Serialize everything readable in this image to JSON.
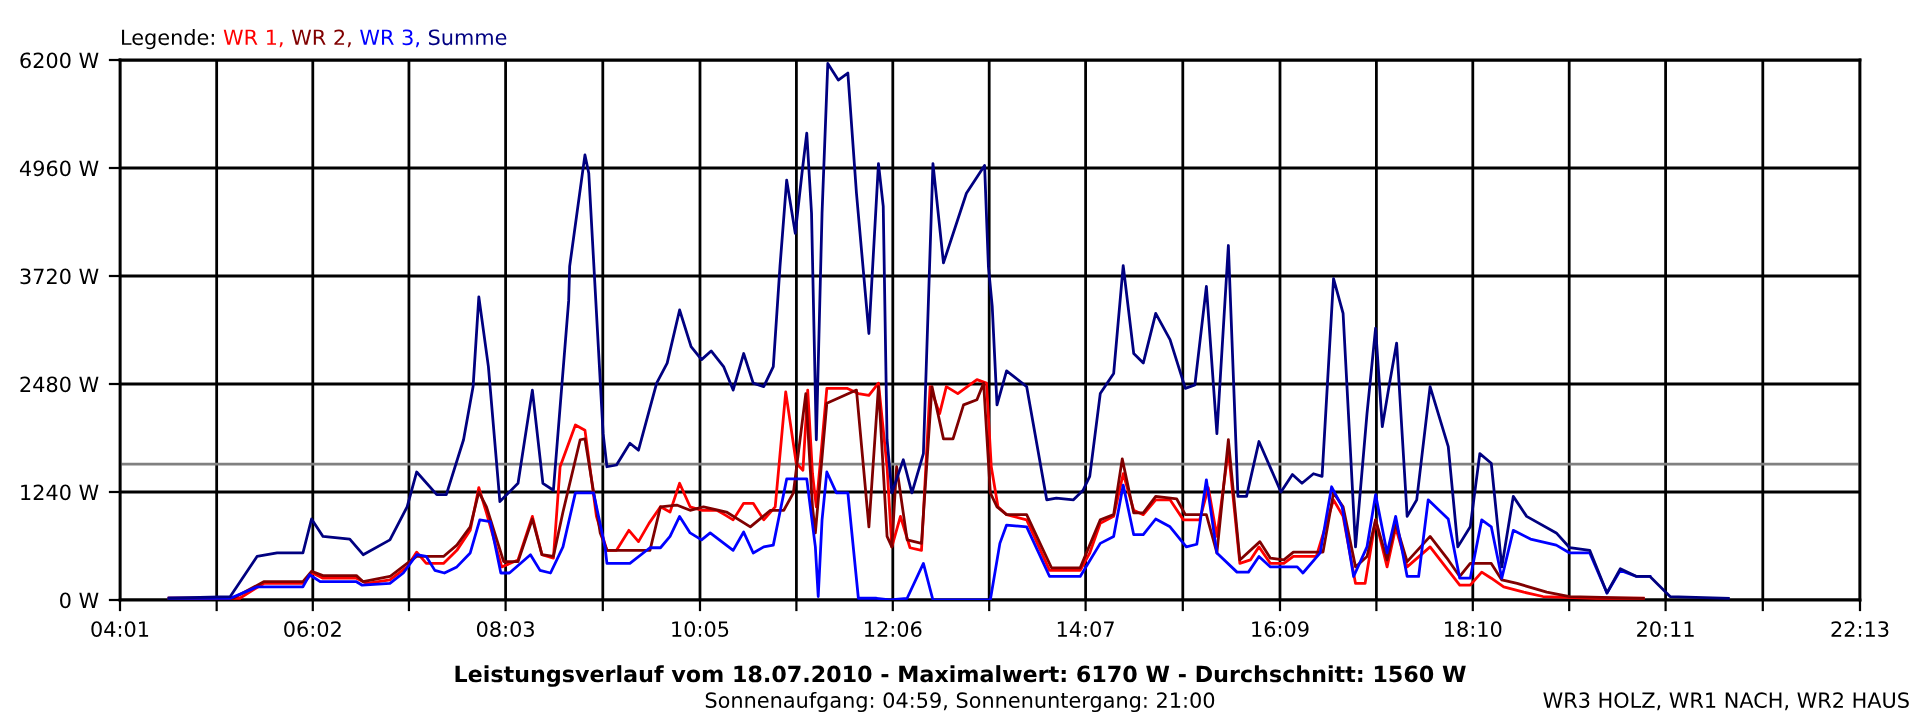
{
  "chart_data": {
    "type": "line",
    "title": "Leistungsverlauf vom 18.07.2010 - Maximalwert: 6170 W - Durchschnitt: 1560 W",
    "subtitle": "Sonnenaufgang: 04:59, Sonnenuntergang: 21:00",
    "legend_title": "Legende:",
    "annotations": [
      "WR3 HOLZ, WR1 NACH, WR2 HAUS"
    ],
    "xlim": [
      4.0167,
      22.2167
    ],
    "xticks": [
      {
        "value": 4.0167,
        "label": "04:01"
      },
      {
        "value": 5.0278,
        "label": null
      },
      {
        "value": 6.0333,
        "label": "06:02"
      },
      {
        "value": 7.0389,
        "label": null
      },
      {
        "value": 8.05,
        "label": "08:03"
      },
      {
        "value": 9.0667,
        "label": null
      },
      {
        "value": 10.0833,
        "label": "10:05"
      },
      {
        "value": 11.0917,
        "label": null
      },
      {
        "value": 12.1,
        "label": "12:06"
      },
      {
        "value": 13.1083,
        "label": null
      },
      {
        "value": 14.1167,
        "label": "14:07"
      },
      {
        "value": 15.1333,
        "label": null
      },
      {
        "value": 16.15,
        "label": "16:09"
      },
      {
        "value": 17.1583,
        "label": null
      },
      {
        "value": 18.1667,
        "label": "18:10"
      },
      {
        "value": 19.175,
        "label": null
      },
      {
        "value": 20.1833,
        "label": "20:11"
      },
      {
        "value": 21.2,
        "label": null
      },
      {
        "value": 22.2167,
        "label": "22:13"
      }
    ],
    "ylim": [
      0,
      6200
    ],
    "yticks": [
      {
        "value": 0,
        "label": "0 W"
      },
      {
        "value": 1240,
        "label": "1240 W"
      },
      {
        "value": 2480,
        "label": "2480 W"
      },
      {
        "value": 3720,
        "label": "3720 W"
      },
      {
        "value": 4960,
        "label": "4960 W"
      },
      {
        "value": 6200,
        "label": "6200 W"
      }
    ],
    "grid": true,
    "legend": "top left",
    "marker": "none",
    "line_style": "solid",
    "ref_lines": [
      {
        "axis": "y",
        "value": 1560,
        "color": "#808080"
      }
    ],
    "series": [
      {
        "name": "WR 1,",
        "color": "#ff0000",
        "x": [
          4.53,
          5.27,
          5.52,
          5.93,
          6.03,
          6.14,
          6.49,
          6.6,
          6.84,
          7.02,
          7.12,
          7.22,
          7.4,
          7.54,
          7.68,
          7.77,
          7.85,
          8.01,
          8.18,
          8.33,
          8.43,
          8.55,
          8.62,
          8.78,
          8.88,
          9.0,
          9.11,
          9.21,
          9.34,
          9.44,
          9.55,
          9.67,
          9.77,
          9.87,
          9.98,
          10.1,
          10.26,
          10.34,
          10.43,
          10.54,
          10.64,
          10.75,
          10.87,
          10.98,
          11.09,
          11.16,
          11.21,
          11.26,
          11.3,
          11.41,
          11.62,
          11.74,
          11.85,
          11.95,
          12.04,
          12.09,
          12.18,
          12.28,
          12.4,
          12.49,
          12.59,
          12.66,
          12.78,
          12.98,
          13.08,
          13.13,
          13.2,
          13.29,
          13.5,
          13.74,
          14.06,
          14.16,
          14.27,
          14.41,
          14.51,
          14.62,
          14.72,
          14.85,
          15.0,
          15.14,
          15.31,
          15.4,
          15.49,
          15.61,
          15.73,
          15.84,
          15.93,
          16.05,
          16.19,
          16.29,
          16.53,
          16.71,
          16.81,
          16.94,
          17.04,
          17.15,
          17.27,
          17.36,
          17.48,
          17.72,
          17.91,
          18.03,
          18.14,
          18.26,
          18.36,
          18.49,
          18.7,
          18.9,
          19.46,
          19.95
        ],
        "values": [
          20,
          20,
          190,
          190,
          310,
          250,
          250,
          190,
          230,
          380,
          550,
          420,
          420,
          570,
          800,
          1290,
          1000,
          380,
          460,
          960,
          520,
          480,
          1530,
          2010,
          1950,
          960,
          570,
          570,
          800,
          670,
          880,
          1070,
          1010,
          1340,
          1070,
          1030,
          1030,
          980,
          920,
          1110,
          1110,
          920,
          1070,
          2390,
          1570,
          1490,
          2410,
          1450,
          1070,
          2430,
          2430,
          2370,
          2350,
          2490,
          1530,
          610,
          960,
          600,
          570,
          2450,
          2140,
          2450,
          2370,
          2530,
          2490,
          1530,
          1070,
          980,
          920,
          340,
          340,
          540,
          880,
          960,
          1450,
          1030,
          980,
          1150,
          1150,
          920,
          920,
          1290,
          730,
          1720,
          420,
          460,
          610,
          420,
          420,
          500,
          500,
          1150,
          960,
          190,
          190,
          920,
          380,
          830,
          380,
          610,
          340,
          170,
          170,
          320,
          250,
          150,
          90,
          40,
          20,
          20
        ]
      },
      {
        "name": "WR 2,",
        "color": "#800000",
        "x": [
          4.53,
          5.2,
          5.52,
          5.93,
          6.02,
          6.14,
          6.49,
          6.56,
          6.84,
          7.02,
          7.12,
          7.4,
          7.54,
          7.68,
          7.77,
          7.85,
          8.03,
          8.18,
          8.33,
          8.43,
          8.55,
          8.65,
          8.83,
          8.88,
          9.04,
          9.11,
          9.56,
          9.67,
          9.84,
          9.98,
          10.12,
          10.36,
          10.61,
          10.82,
          10.96,
          11.06,
          11.19,
          11.26,
          11.29,
          11.41,
          11.72,
          11.85,
          11.95,
          12.04,
          12.09,
          12.14,
          12.25,
          12.4,
          12.51,
          12.63,
          12.73,
          12.84,
          12.98,
          13.05,
          13.12,
          13.19,
          13.29,
          13.5,
          13.76,
          14.06,
          14.27,
          14.41,
          14.5,
          14.62,
          14.72,
          14.85,
          15.07,
          15.16,
          15.38,
          15.49,
          15.61,
          15.73,
          15.94,
          16.05,
          16.19,
          16.29,
          16.6,
          16.71,
          16.81,
          16.94,
          17.06,
          17.15,
          17.27,
          17.36,
          17.48,
          17.72,
          17.91,
          18.03,
          18.14,
          18.36,
          18.47,
          18.63,
          18.94,
          19.18,
          19.95
        ],
        "values": [
          20,
          20,
          210,
          210,
          330,
          280,
          280,
          210,
          270,
          420,
          500,
          500,
          630,
          840,
          1240,
          1070,
          440,
          440,
          930,
          520,
          500,
          1010,
          1840,
          1850,
          770,
          570,
          570,
          1070,
          1090,
          1030,
          1070,
          1010,
          840,
          1030,
          1030,
          1230,
          2370,
          1070,
          770,
          2260,
          2410,
          840,
          2450,
          730,
          610,
          1530,
          690,
          650,
          2450,
          1850,
          1850,
          2240,
          2300,
          2490,
          1230,
          1070,
          980,
          980,
          370,
          370,
          920,
          980,
          1620,
          1000,
          1000,
          1190,
          1160,
          980,
          980,
          540,
          1840,
          460,
          670,
          480,
          460,
          550,
          550,
          1230,
          1070,
          380,
          500,
          920,
          460,
          880,
          440,
          730,
          460,
          270,
          420,
          420,
          230,
          190,
          90,
          40,
          20
        ]
      },
      {
        "name": "WR 3,",
        "color": "#0000ff",
        "x": [
          4.53,
          5.17,
          5.45,
          5.93,
          6.0,
          6.11,
          6.49,
          6.55,
          6.84,
          6.98,
          7.12,
          7.22,
          7.31,
          7.41,
          7.54,
          7.68,
          7.78,
          7.89,
          8.0,
          8.09,
          8.31,
          8.41,
          8.52,
          8.65,
          8.78,
          8.97,
          9.09,
          9.11,
          9.35,
          9.56,
          9.67,
          9.77,
          9.87,
          9.98,
          10.1,
          10.19,
          10.43,
          10.54,
          10.64,
          10.75,
          10.85,
          10.99,
          11.2,
          11.29,
          11.32,
          11.36,
          11.41,
          11.51,
          11.63,
          11.74,
          11.93,
          12.07,
          12.25,
          12.42,
          12.52,
          13.12,
          13.22,
          13.29,
          13.5,
          13.74,
          14.06,
          14.27,
          14.41,
          14.51,
          14.62,
          14.72,
          14.85,
          15.0,
          15.17,
          15.28,
          15.38,
          15.49,
          15.7,
          15.82,
          15.93,
          16.05,
          16.33,
          16.39,
          16.57,
          16.69,
          16.8,
          16.92,
          17.06,
          17.15,
          17.27,
          17.36,
          17.48,
          17.6,
          17.7,
          17.91,
          18.03,
          18.14,
          18.26,
          18.36,
          18.47,
          18.59,
          18.77,
          19.04,
          19.18,
          19.39,
          19.57,
          19.71,
          19.88,
          20.02
        ],
        "values": [
          20,
          20,
          150,
          150,
          290,
          210,
          210,
          170,
          190,
          310,
          520,
          500,
          340,
          310,
          380,
          540,
          920,
          900,
          310,
          310,
          520,
          340,
          310,
          610,
          1230,
          1230,
          610,
          420,
          420,
          600,
          600,
          730,
          960,
          770,
          690,
          770,
          570,
          780,
          540,
          610,
          630,
          1390,
          1390,
          610,
          40,
          920,
          1470,
          1230,
          1230,
          20,
          20,
          0,
          20,
          420,
          0,
          0,
          650,
          860,
          840,
          270,
          270,
          650,
          730,
          1320,
          750,
          750,
          930,
          840,
          610,
          640,
          1380,
          540,
          320,
          320,
          500,
          380,
          380,
          310,
          540,
          1300,
          1070,
          270,
          610,
          1210,
          540,
          960,
          270,
          270,
          1150,
          930,
          250,
          250,
          920,
          840,
          250,
          800,
          700,
          630,
          540,
          540,
          80,
          340,
          270,
          270
        ]
      },
      {
        "name": "Summe",
        "color": "#000080",
        "x": [
          4.53,
          5.17,
          5.45,
          5.66,
          5.93,
          6.02,
          6.14,
          6.42,
          6.56,
          6.84,
          7.02,
          7.12,
          7.33,
          7.43,
          7.61,
          7.71,
          7.77,
          7.87,
          7.99,
          8.18,
          8.33,
          8.44,
          8.55,
          8.71,
          8.72,
          8.88,
          8.92,
          9.07,
          9.11,
          9.21,
          9.35,
          9.44,
          9.63,
          9.74,
          9.87,
          9.99,
          10.1,
          10.2,
          10.33,
          10.43,
          10.54,
          10.64,
          10.75,
          10.85,
          10.92,
          10.99,
          11.08,
          11.15,
          11.2,
          11.25,
          11.3,
          11.36,
          11.42,
          11.53,
          11.63,
          11.72,
          11.85,
          11.95,
          12.0,
          12.04,
          12.09,
          12.21,
          12.3,
          12.42,
          12.52,
          12.63,
          12.87,
          13.06,
          13.1,
          13.14,
          13.19,
          13.29,
          13.5,
          13.71,
          13.81,
          13.99,
          14.09,
          14.16,
          14.27,
          14.41,
          14.51,
          14.62,
          14.72,
          14.85,
          15.0,
          15.16,
          15.26,
          15.38,
          15.49,
          15.61,
          15.71,
          15.8,
          15.93,
          16.16,
          16.28,
          16.38,
          16.5,
          16.59,
          16.71,
          16.81,
          16.94,
          17.06,
          17.15,
          17.22,
          17.29,
          17.37,
          17.48,
          17.58,
          17.72,
          17.91,
          18.01,
          18.14,
          18.24,
          18.36,
          18.47,
          18.59,
          18.73,
          19.04,
          19.18,
          19.39,
          19.57,
          19.71,
          19.88,
          20.02,
          20.23,
          20.84
        ],
        "values": [
          20,
          40,
          500,
          540,
          540,
          930,
          730,
          700,
          520,
          690,
          1070,
          1470,
          1210,
          1210,
          1840,
          2450,
          3480,
          2680,
          1130,
          1340,
          2410,
          1340,
          1260,
          3440,
          3830,
          5110,
          4900,
          1910,
          1530,
          1550,
          1800,
          1720,
          2490,
          2720,
          3330,
          2910,
          2760,
          2860,
          2680,
          2410,
          2830,
          2490,
          2450,
          2680,
          3830,
          4820,
          4210,
          4900,
          5360,
          4440,
          1840,
          4440,
          6160,
          5970,
          6050,
          4670,
          3060,
          5010,
          4520,
          1840,
          1230,
          1610,
          1230,
          1680,
          5010,
          3870,
          4670,
          4990,
          3830,
          3370,
          2240,
          2630,
          2450,
          1150,
          1170,
          1150,
          1260,
          1420,
          2370,
          2600,
          3840,
          2830,
          2720,
          3290,
          2990,
          2430,
          2470,
          3600,
          1910,
          4070,
          1190,
          1190,
          1820,
          1240,
          1440,
          1340,
          1450,
          1420,
          3690,
          3290,
          610,
          2140,
          3120,
          1990,
          2450,
          2950,
          960,
          1150,
          2450,
          1760,
          610,
          840,
          1680,
          1570,
          380,
          1190,
          960,
          770,
          600,
          570,
          80,
          360,
          270,
          270,
          40,
          20
        ]
      }
    ]
  }
}
